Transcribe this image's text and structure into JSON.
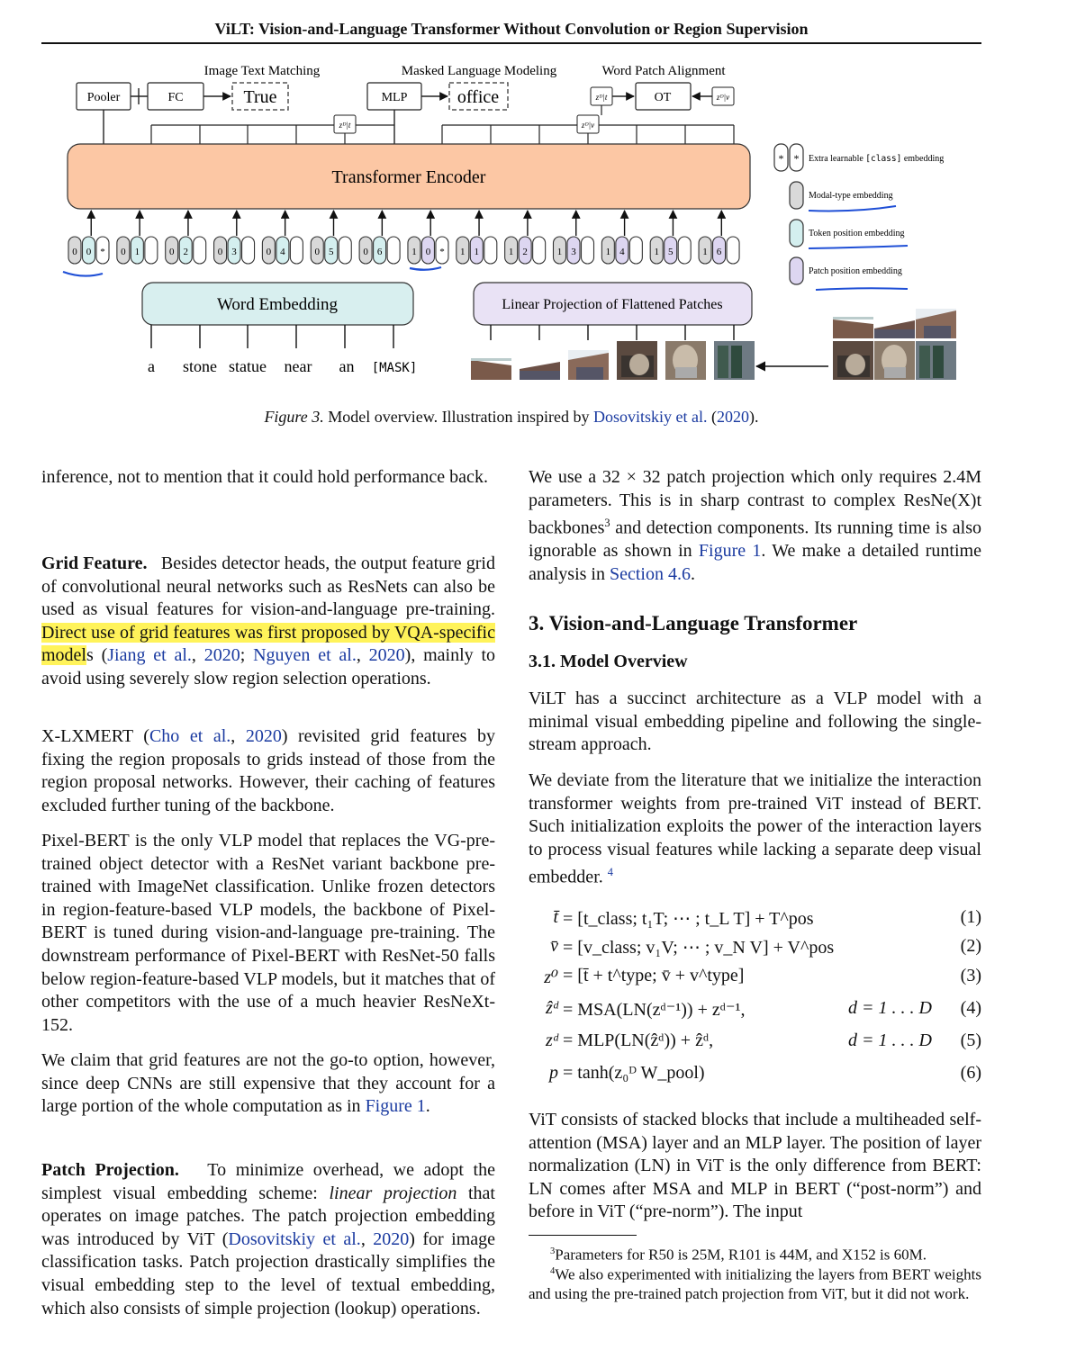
{
  "running_head": "ViLT: Vision-and-Language Transformer Without Convolution or Region Supervision",
  "figure": {
    "heads": {
      "itm": "Image Text Matching",
      "mlm": "Masked Language Modeling",
      "wpa": "Word Patch Alignment"
    },
    "boxes": {
      "pooler": "Pooler",
      "fc": "FC",
      "true": "True",
      "mlp": "MLP",
      "office": "office",
      "ot": "OT",
      "encoder": "Transformer Encoder",
      "word_embedding": "Word Embedding",
      "linear_projection": "Linear Projection of Flattened Patches"
    },
    "z_labels": {
      "zt": "zᴰ|t",
      "zv": "zᴰ|v"
    },
    "tokens": [
      {
        "modal": "0",
        "pos": "0",
        "extra": "*"
      },
      {
        "modal": "0",
        "pos": "1"
      },
      {
        "modal": "0",
        "pos": "2"
      },
      {
        "modal": "0",
        "pos": "3"
      },
      {
        "modal": "0",
        "pos": "4"
      },
      {
        "modal": "0",
        "pos": "5"
      },
      {
        "modal": "0",
        "pos": "6"
      },
      {
        "modal": "1",
        "pos": "0",
        "extra": "*"
      },
      {
        "modal": "1",
        "pos": "1"
      },
      {
        "modal": "1",
        "pos": "2"
      },
      {
        "modal": "1",
        "pos": "3"
      },
      {
        "modal": "1",
        "pos": "4"
      },
      {
        "modal": "1",
        "pos": "5"
      },
      {
        "modal": "1",
        "pos": "6"
      }
    ],
    "words": [
      "a",
      "stone",
      "statue",
      "near",
      "an",
      "[MASK]"
    ],
    "legend": {
      "star": "*",
      "extra_pre": "Extra learnable ",
      "extra_code": "[class]",
      "extra_post": " embedding",
      "modal": "Modal-type embedding",
      "token_pos": "Token position embedding",
      "patch_pos": "Patch position embedding"
    },
    "colors": {
      "encoder": "#fcc7a4",
      "word_embedding": "#d8efef",
      "linear_projection": "#e9e2f5",
      "modal": "#d9d9d9",
      "token_pos": "#d4efef",
      "patch_pos": "#ddd6f1",
      "pen": "#1f4fd6",
      "highlight": "#fff35a"
    },
    "caption_label": "Figure 3.",
    "caption_text": " Model overview. Illustration inspired by ",
    "caption_link": "Dosovitskiy et al.",
    "caption_year": "2020",
    "caption_end": ")."
  },
  "left": {
    "p0": "inference, not to mention that it could hold performance back.",
    "grid_head": "Grid Feature.",
    "grid_a": "Besides detector heads, the output feature grid of convolutional neural networks such as ResNets can also be used as visual features for vision-and-language pre-training. ",
    "grid_hl": "Direct use of grid features was first proposed by VQA-specific model",
    "grid_b": "s (",
    "grid_c1": "Jiang et al.",
    "grid_c1y": "2020",
    "grid_c2": "Nguyen et al.",
    "grid_c2y": "2020",
    "grid_c": "), mainly to avoid using severely slow region selection operations.",
    "xl_a": "X-LXMERT (",
    "xl_c": "Cho et al.",
    "xl_cy": "2020",
    "xl_b": ") revisited grid features by fixing the region proposals to grids instead of those from the region proposal networks. However, their caching of features excluded further tuning of the backbone.",
    "pb": "Pixel-BERT is the only VLP model that replaces the VG-pre-trained object detector with a ResNet variant backbone pre-trained with ImageNet classification. Unlike frozen detectors in region-feature-based VLP models, the backbone of Pixel-BERT is tuned during vision-and-language pre-training. The downstream performance of Pixel-BERT with ResNet-50 falls below region-feature-based VLP models, but it matches that of other competitors with the use of a much heavier ResNeXt-152.",
    "claim_a": "We claim that grid features are not the go-to option, however, since deep CNNs are still expensive that they account for a large portion of the whole computation as in ",
    "claim_link": "Figure 1",
    "claim_b": ".",
    "pp_head": "Patch Projection.",
    "pp_a": "To minimize overhead, we adopt the simplest visual embedding scheme: ",
    "pp_it": "linear projection",
    "pp_b": " that operates on image patches. The patch projection embedding was introduced by ViT (",
    "pp_c": "Dosovitskiy et al.",
    "pp_cy": "2020",
    "pp_d": ") for image classification tasks. Patch projection drastically simplifies the visual embedding step to the level of textual embedding, which also consists of simple projection (lookup) operations."
  },
  "right": {
    "p0_a": "We use a 32 × 32 patch projection which only requires 2.4M parameters. This is in sharp contrast to complex ResNe(X)t backbones",
    "p0_fn": "3",
    "p0_b": " and detection components. Its running time is also ignorable as shown in ",
    "p0_l1": "Figure 1",
    "p0_c": ". We make a detailed runtime analysis in ",
    "p0_l2": "Section 4.6",
    "p0_d": ".",
    "section": "3. Vision-and-Language Transformer",
    "subsection": "3.1. Model Overview",
    "p1": "ViLT has a succinct architecture as a VLP model with a minimal visual embedding pipeline and following the single-stream approach.",
    "p2_a": "We deviate from the literature that we initialize the interaction transformer weights from pre-trained ViT instead of BERT. Such initialization exploits the power of the interaction layers to process visual features while lacking a separate deep visual embedder. ",
    "p2_fn": "4",
    "equations": [
      {
        "lhs": "t̄",
        "rhs": "= [t_class; t₁T; ⋯ ; t_L T] + T^pos",
        "cond": "",
        "num": "(1)"
      },
      {
        "lhs": "v̄",
        "rhs": "= [v_class; v₁V; ⋯ ; v_N V] + V^pos",
        "cond": "",
        "num": "(2)"
      },
      {
        "lhs": "z⁰",
        "rhs": "= [t̄ + t^type; v̄ + v^type]",
        "cond": "",
        "num": "(3)"
      },
      {
        "lhs": "ẑᵈ",
        "rhs": "= MSA(LN(zᵈ⁻¹)) + zᵈ⁻¹,",
        "cond": "d = 1 . . . D",
        "num": "(4)"
      },
      {
        "lhs": "zᵈ",
        "rhs": "= MLP(LN(ẑᵈ)) + ẑᵈ,",
        "cond": "d = 1 . . . D",
        "num": "(5)"
      },
      {
        "lhs": "p",
        "rhs": "= tanh(z₀ᴰ W_pool)",
        "cond": "",
        "num": "(6)"
      }
    ],
    "p3": "ViT consists of stacked blocks that include a multiheaded self-attention (MSA) layer and an MLP layer. The position of layer normalization (LN) in ViT is the only difference from BERT: LN comes after MSA and MLP in BERT (“post-norm”) and before in ViT (“pre-norm”). The input",
    "fn3_mark": "3",
    "fn3": "Parameters for R50 is 25M, R101 is 44M, and X152 is 60M.",
    "fn4_mark": "4",
    "fn4": "We also experimented with initializing the layers from BERT weights and using the pre-trained patch projection from ViT, but it did not work."
  }
}
